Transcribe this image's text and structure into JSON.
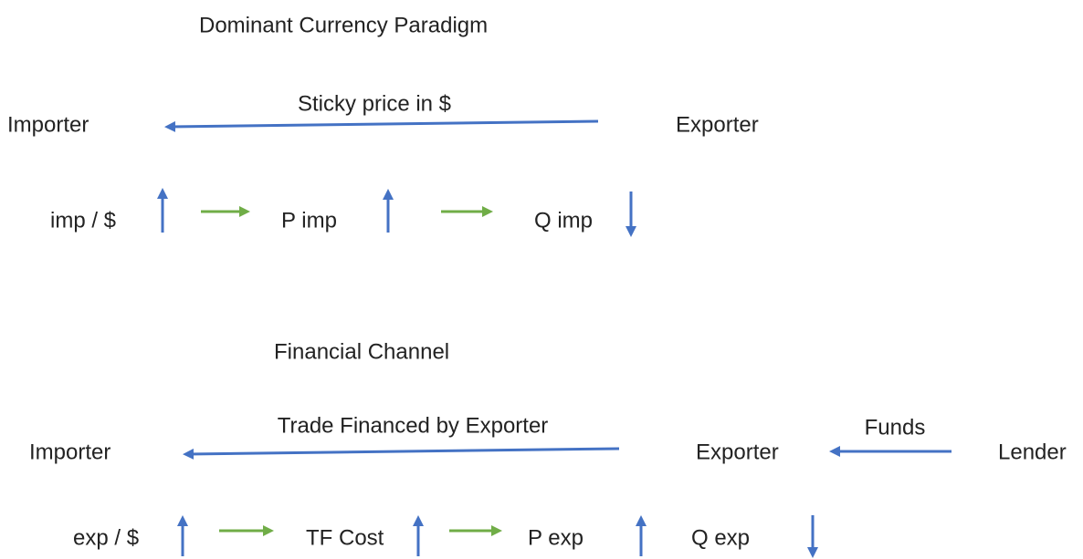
{
  "sections": [
    {
      "title": "Dominant Currency Paradigm",
      "nodes": [
        "Importer",
        "Exporter"
      ],
      "link_labels": [
        "Sticky price in $"
      ],
      "chain": [
        "imp / $",
        "P imp",
        "Q imp"
      ]
    },
    {
      "title": "Financial Channel",
      "nodes": [
        "Importer",
        "Exporter",
        "Lender"
      ],
      "link_labels": [
        "Trade Financed by Exporter",
        "Funds"
      ],
      "chain": [
        "exp / $",
        "TF Cost",
        "P exp",
        "Q exp"
      ]
    }
  ]
}
